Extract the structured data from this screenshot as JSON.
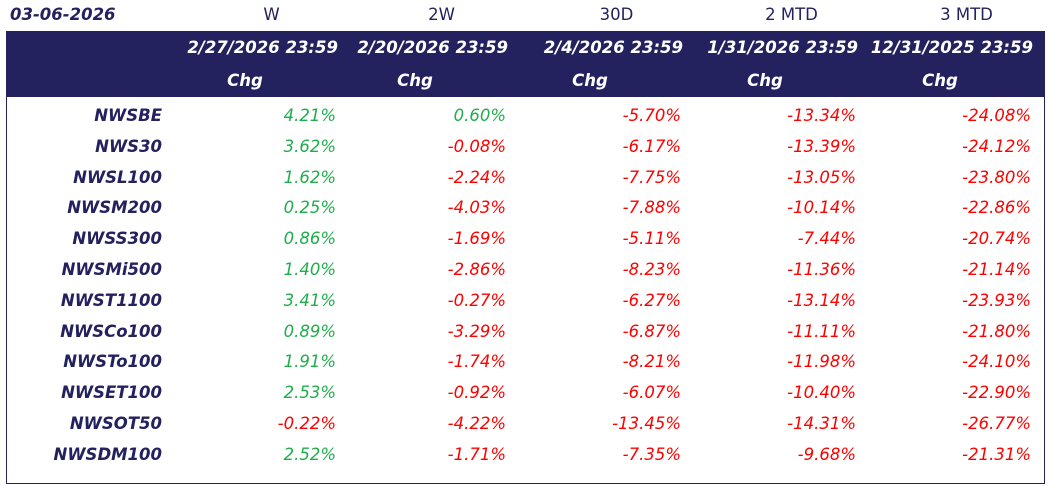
{
  "table": {
    "corner": "03-06-2026",
    "periods": [
      "W",
      "2W",
      "30D",
      "2 MTD",
      "3 MTD"
    ],
    "dates": [
      "2/27/2026 23:59",
      "2/20/2026 23:59",
      "2/4/2026 23:59",
      "1/31/2026 23:59",
      "12/31/2025 23:59"
    ],
    "measures": [
      "Chg",
      "Chg",
      "Chg",
      "Chg",
      "Chg"
    ],
    "positive_color": "#1fae4b",
    "negative_color": "#ff0000",
    "rows": [
      {
        "name": "NWSBE",
        "values": [
          "4.21%",
          "0.60%",
          "-5.70%",
          "-13.34%",
          "-24.08%"
        ]
      },
      {
        "name": "NWS30",
        "values": [
          "3.62%",
          "-0.08%",
          "-6.17%",
          "-13.39%",
          "-24.12%"
        ]
      },
      {
        "name": "NWSL100",
        "values": [
          "1.62%",
          "-2.24%",
          "-7.75%",
          "-13.05%",
          "-23.80%"
        ]
      },
      {
        "name": "NWSM200",
        "values": [
          "0.25%",
          "-4.03%",
          "-7.88%",
          "-10.14%",
          "-22.86%"
        ]
      },
      {
        "name": "NWSS300",
        "values": [
          "0.86%",
          "-1.69%",
          "-5.11%",
          "-7.44%",
          "-20.74%"
        ]
      },
      {
        "name": "NWSMi500",
        "values": [
          "1.40%",
          "-2.86%",
          "-8.23%",
          "-11.36%",
          "-21.14%"
        ]
      },
      {
        "name": "NWST1100",
        "values": [
          "3.41%",
          "-0.27%",
          "-6.27%",
          "-13.14%",
          "-23.93%"
        ]
      },
      {
        "name": "NWSCo100",
        "values": [
          "0.89%",
          "-3.29%",
          "-6.87%",
          "-11.11%",
          "-21.80%"
        ]
      },
      {
        "name": "NWSTo100",
        "values": [
          "1.91%",
          "-1.74%",
          "-8.21%",
          "-11.98%",
          "-24.10%"
        ]
      },
      {
        "name": "NWSET100",
        "values": [
          "2.53%",
          "-0.92%",
          "-6.07%",
          "-10.40%",
          "-22.90%"
        ]
      },
      {
        "name": "NWSOT50",
        "values": [
          "-0.22%",
          "-4.22%",
          "-13.45%",
          "-14.31%",
          "-26.77%"
        ]
      },
      {
        "name": "NWSDM100",
        "values": [
          "2.52%",
          "-1.71%",
          "-7.35%",
          "-9.68%",
          "-21.31%"
        ]
      }
    ]
  }
}
